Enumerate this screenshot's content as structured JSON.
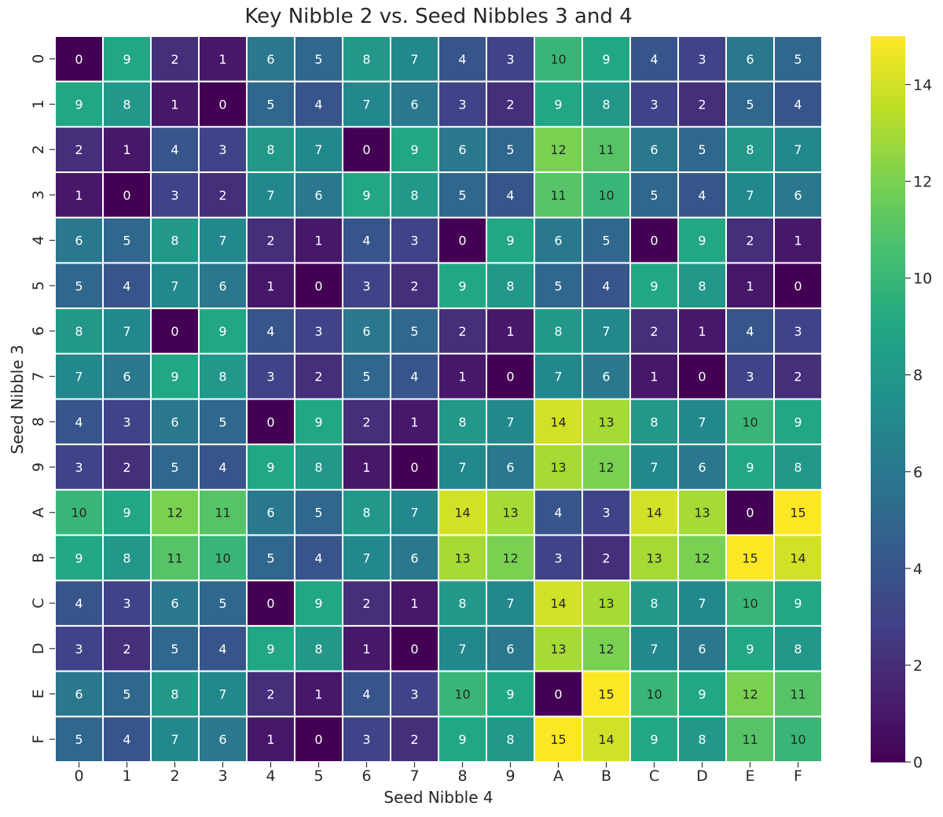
{
  "chart_data": {
    "type": "heatmap",
    "title": "Key Nibble 2 vs. Seed Nibbles 3 and 4",
    "xlabel": "Seed Nibble 4",
    "ylabel": "Seed Nibble 3",
    "x_categories": [
      "0",
      "1",
      "2",
      "3",
      "4",
      "5",
      "6",
      "7",
      "8",
      "9",
      "A",
      "B",
      "C",
      "D",
      "E",
      "F"
    ],
    "y_categories": [
      "0",
      "1",
      "2",
      "3",
      "4",
      "5",
      "6",
      "7",
      "8",
      "9",
      "A",
      "B",
      "C",
      "D",
      "E",
      "F"
    ],
    "values": [
      [
        0,
        9,
        2,
        1,
        6,
        5,
        8,
        7,
        4,
        3,
        10,
        9,
        4,
        3,
        6,
        5
      ],
      [
        9,
        8,
        1,
        0,
        5,
        4,
        7,
        6,
        3,
        2,
        9,
        8,
        3,
        2,
        5,
        4
      ],
      [
        2,
        1,
        4,
        3,
        8,
        7,
        0,
        9,
        6,
        5,
        12,
        11,
        6,
        5,
        8,
        7
      ],
      [
        1,
        0,
        3,
        2,
        7,
        6,
        9,
        8,
        5,
        4,
        11,
        10,
        5,
        4,
        7,
        6
      ],
      [
        6,
        5,
        8,
        7,
        2,
        1,
        4,
        3,
        0,
        9,
        6,
        5,
        0,
        9,
        2,
        1
      ],
      [
        5,
        4,
        7,
        6,
        1,
        0,
        3,
        2,
        9,
        8,
        5,
        4,
        9,
        8,
        1,
        0
      ],
      [
        8,
        7,
        0,
        9,
        4,
        3,
        6,
        5,
        2,
        1,
        8,
        7,
        2,
        1,
        4,
        3
      ],
      [
        7,
        6,
        9,
        8,
        3,
        2,
        5,
        4,
        1,
        0,
        7,
        6,
        1,
        0,
        3,
        2
      ],
      [
        4,
        3,
        6,
        5,
        0,
        9,
        2,
        1,
        8,
        7,
        14,
        13,
        8,
        7,
        10,
        9
      ],
      [
        3,
        2,
        5,
        4,
        9,
        8,
        1,
        0,
        7,
        6,
        13,
        12,
        7,
        6,
        9,
        8
      ],
      [
        10,
        9,
        12,
        11,
        6,
        5,
        8,
        7,
        14,
        13,
        4,
        3,
        14,
        13,
        0,
        15
      ],
      [
        9,
        8,
        11,
        10,
        5,
        4,
        7,
        6,
        13,
        12,
        3,
        2,
        13,
        12,
        15,
        14
      ],
      [
        4,
        3,
        6,
        5,
        0,
        9,
        2,
        1,
        8,
        7,
        14,
        13,
        8,
        7,
        10,
        9
      ],
      [
        3,
        2,
        5,
        4,
        9,
        8,
        1,
        0,
        7,
        6,
        13,
        12,
        7,
        6,
        9,
        8
      ],
      [
        6,
        5,
        8,
        7,
        2,
        1,
        4,
        3,
        10,
        9,
        0,
        15,
        10,
        9,
        12,
        11
      ],
      [
        5,
        4,
        7,
        6,
        1,
        0,
        3,
        2,
        9,
        8,
        15,
        14,
        9,
        8,
        11,
        10
      ]
    ],
    "colormap": "viridis",
    "vmin": 0,
    "vmax": 15,
    "colorbar_ticks": [
      0,
      2,
      4,
      6,
      8,
      10,
      12,
      14
    ],
    "annotations": true,
    "grid_line_color": "#ffffff"
  }
}
